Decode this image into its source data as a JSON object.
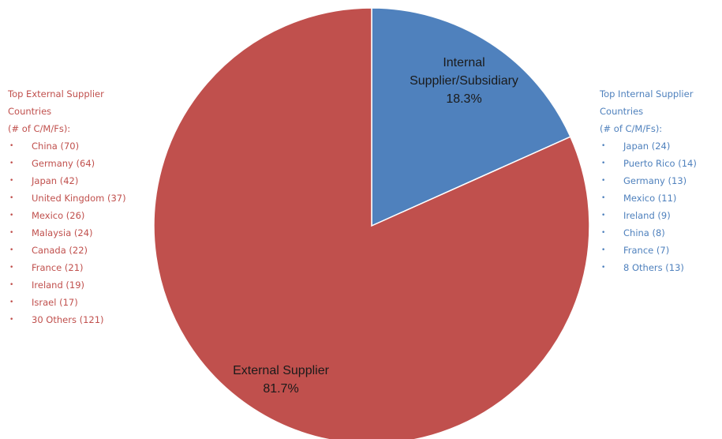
{
  "chart_data": {
    "type": "pie",
    "slices": [
      {
        "label_lines": [
          "Internal",
          "Supplier/Subsidiary"
        ],
        "value": 18.3,
        "value_text": "18.3%",
        "color": "#4f81bd"
      },
      {
        "label_lines": [
          "External Supplier"
        ],
        "value": 81.7,
        "value_text": "81.7%",
        "color": "#c0504d"
      }
    ]
  },
  "external_panel": {
    "heading": [
      "Top External Supplier",
      "Countries",
      "(# of C/M/Fs):"
    ],
    "items": [
      "China (70)",
      "Germany (64)",
      "Japan (42)",
      "United Kingdom (37)",
      "Mexico (26)",
      "Malaysia (24)",
      "Canada (22)",
      "France (21)",
      "Ireland (19)",
      "Israel (17)",
      "30 Others (121)"
    ],
    "color": "#c0504d"
  },
  "internal_panel": {
    "heading": [
      "Top Internal Supplier",
      "Countries",
      "(# of C/M/Fs):"
    ],
    "items": [
      "Japan (24)",
      "Puerto Rico (14)",
      "Germany (13)",
      "Mexico (11)",
      "Ireland (9)",
      "China (8)",
      "France (7)",
      "8 Others (13)"
    ],
    "color": "#4f81bd"
  }
}
